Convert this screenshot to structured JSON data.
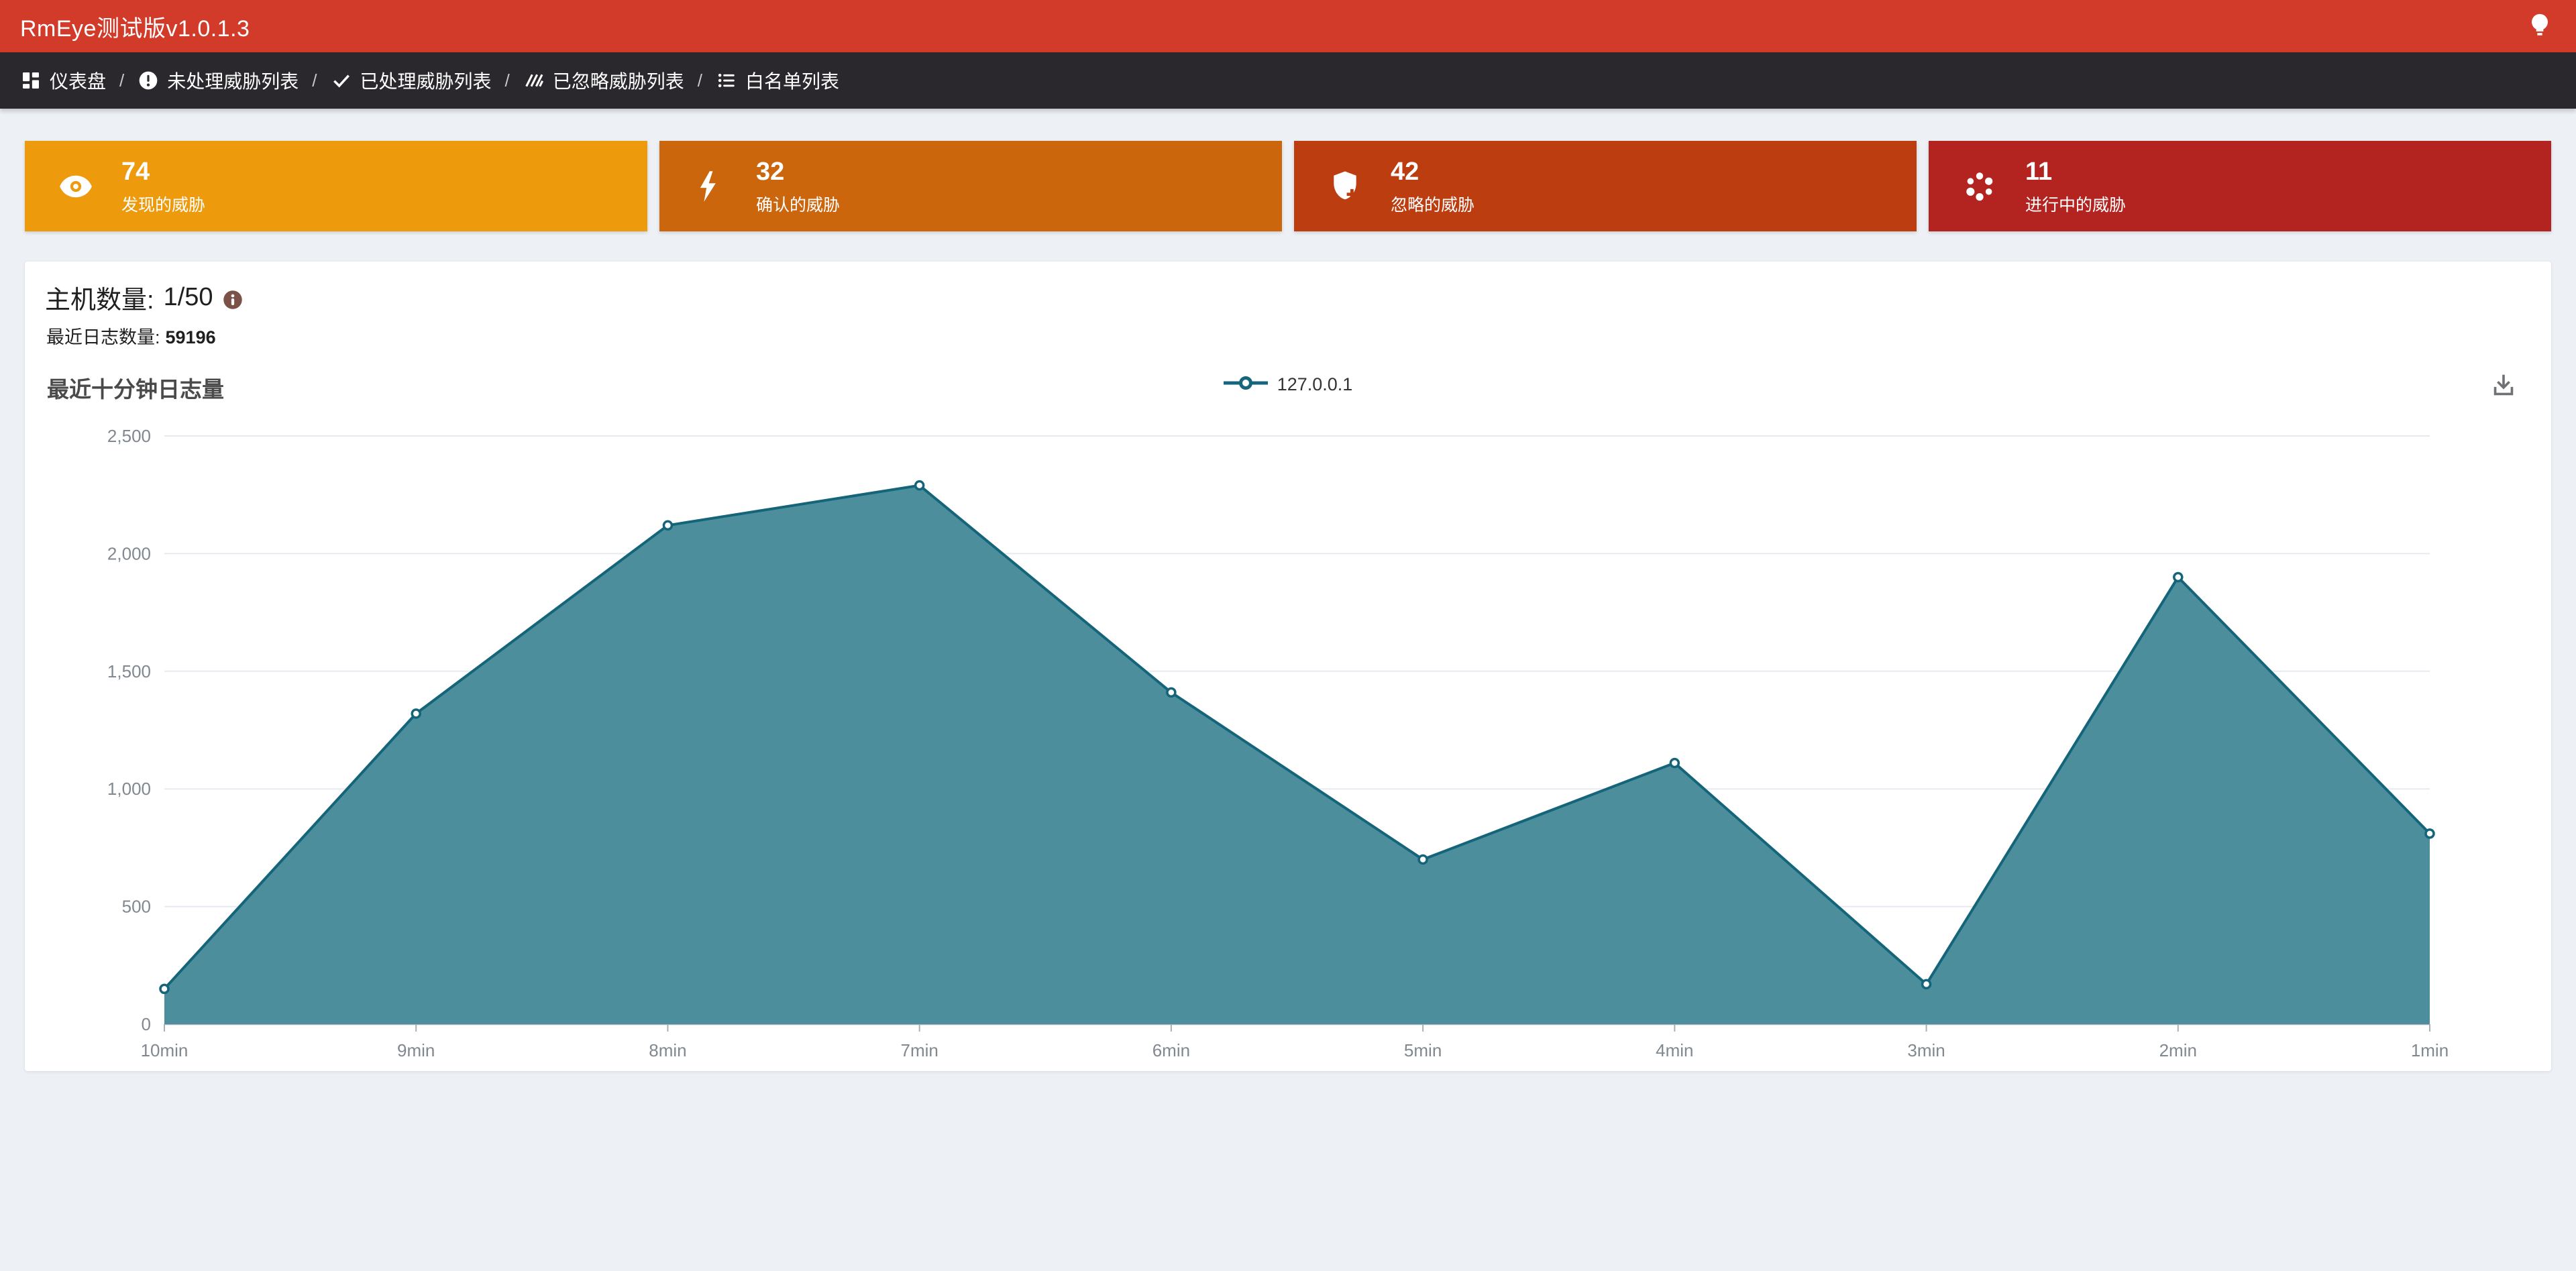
{
  "header": {
    "title": "RmEye测试版v1.0.1.3"
  },
  "nav": {
    "separator": "/",
    "items": [
      {
        "label": "仪表盘",
        "icon": "dashboard-grid-icon"
      },
      {
        "label": "未处理威胁列表",
        "icon": "alert-circle-icon"
      },
      {
        "label": "已处理威胁列表",
        "icon": "check-icon"
      },
      {
        "label": "已忽略威胁列表",
        "icon": "hatch-lines-icon"
      },
      {
        "label": "白名单列表",
        "icon": "list-icon"
      }
    ]
  },
  "stat_cards": [
    {
      "value": "74",
      "label": "发现的威胁",
      "icon": "eye-icon",
      "color": "#ED9A0C"
    },
    {
      "value": "32",
      "label": "确认的威胁",
      "icon": "bolt-icon",
      "color": "#CC660D"
    },
    {
      "value": "42",
      "label": "忽略的威胁",
      "icon": "shield-plus-icon",
      "color": "#BC3D10"
    },
    {
      "value": "11",
      "label": "进行中的威胁",
      "icon": "spinner-dots-icon",
      "color": "#B32421"
    }
  ],
  "summary": {
    "host_label": "主机数量:",
    "host_value": "1/50",
    "log_label": "最近日志数量:",
    "log_value": "59196"
  },
  "chart_data": {
    "type": "area",
    "title": "最近十分钟日志量",
    "categories": [
      "10min",
      "9min",
      "8min",
      "7min",
      "6min",
      "5min",
      "4min",
      "3min",
      "2min",
      "1min"
    ],
    "series": [
      {
        "name": "127.0.0.1",
        "values": [
          150,
          1320,
          2120,
          2290,
          1410,
          700,
          1110,
          170,
          1900,
          810
        ]
      }
    ],
    "xlabel": "",
    "ylabel": "",
    "ylim": [
      0,
      2500
    ],
    "ytick_step": 500,
    "grid": true,
    "legend_position": "top-center",
    "line_color": "#14647A",
    "fill_color": "#4C8E9B",
    "grid_color": "#E5EAF1",
    "axis_color": "#A9AFB8",
    "tick_label_color": "#818890"
  },
  "colors": {
    "header_bg": "#D23B29",
    "nav_bg": "#2A282C",
    "page_bg": "#EDF1F5",
    "info_icon": "#7B5148"
  }
}
